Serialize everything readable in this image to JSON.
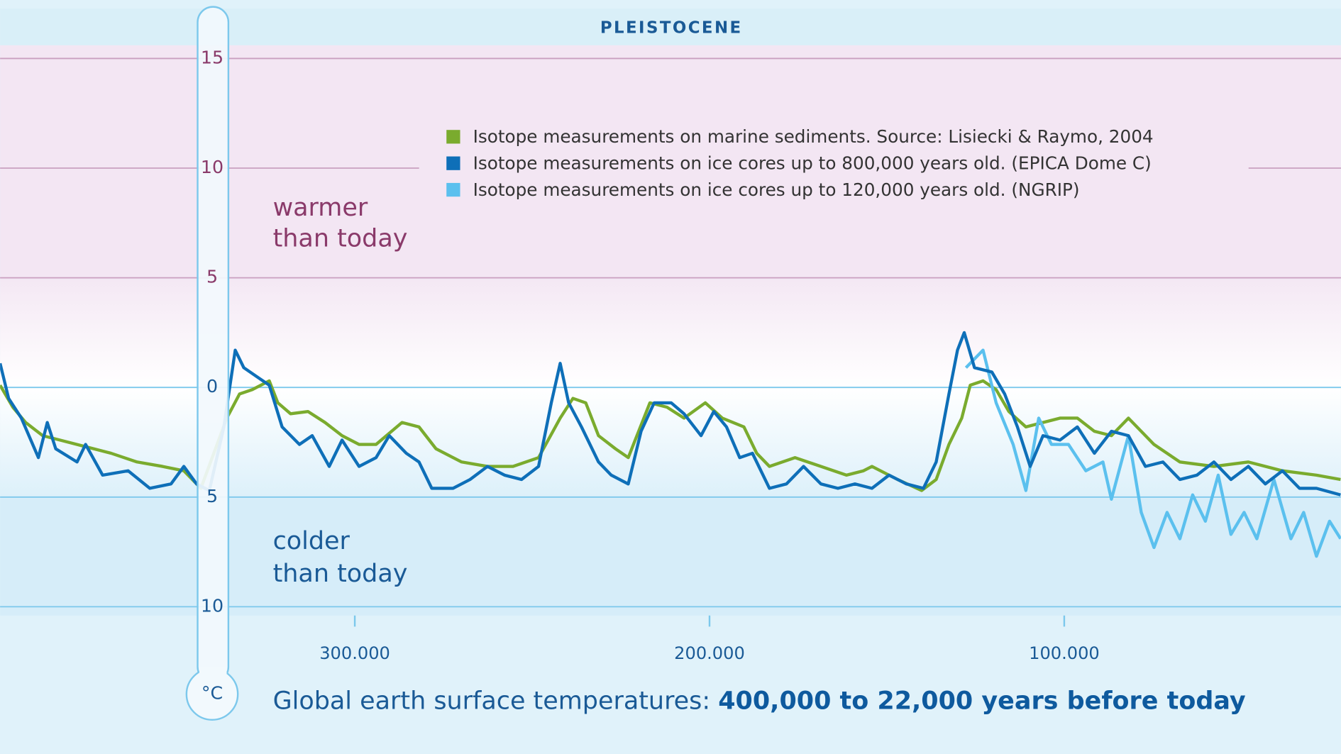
{
  "chart_data": {
    "type": "line",
    "band_label": "PLEISTOCENE",
    "title": {
      "text": "Global earth surface temperatures:",
      "emphasis": "400,000 to 22,000 years before today"
    },
    "y_unit": "°C",
    "annotations": [
      {
        "lines": [
          "warmer",
          "than today"
        ]
      },
      {
        "lines": [
          "colder",
          "than today"
        ]
      }
    ],
    "xlim": [
      400000,
      22000
    ],
    "xticks": [
      {
        "value": 300000,
        "label": "300.000"
      },
      {
        "value": 200000,
        "label": "200.000"
      },
      {
        "value": 100000,
        "label": "100.000"
      }
    ],
    "ylim": [
      -10.4,
      15.6
    ],
    "yticks": [
      15,
      10,
      5,
      0,
      {
        "value": -5,
        "label": "5"
      },
      {
        "value": -10,
        "label": "10"
      }
    ],
    "grid": true,
    "series": [
      {
        "name": "Isotope measurements on marine sediments. Source: Lisiecki & Raymo, 2004",
        "color": "#7aab2e",
        "x": [
          400000,
          396400,
          392800,
          388000,
          383100,
          375900,
          368700,
          361400,
          354200,
          348200,
          343400,
          336100,
          332500,
          328900,
          324100,
          321700,
          318100,
          313200,
          308400,
          303600,
          298800,
          294000,
          286700,
          281900,
          277100,
          269900,
          262600,
          255400,
          248200,
          242100,
          238500,
          234900,
          231300,
          226500,
          222900,
          216800,
          212000,
          207200,
          201200,
          196400,
          190300,
          186700,
          183100,
          175900,
          168600,
          161400,
          156600,
          154200,
          147000,
          140200,
          136100,
          132500,
          128900,
          126500,
          122900,
          119200,
          115600,
          110800,
          106000,
          101200,
          96300,
          91500,
          86700,
          81900,
          74700,
          67400,
          57800,
          48100,
          38500,
          28900,
          22100
        ],
        "values": [
          0.1,
          -0.9,
          -1.6,
          -2.2,
          -2.4,
          -2.7,
          -3.0,
          -3.4,
          -3.6,
          -3.8,
          -4.6,
          -1.4,
          -0.3,
          -0.1,
          0.3,
          -0.7,
          -1.2,
          -1.1,
          -1.6,
          -2.2,
          -2.6,
          -2.6,
          -1.6,
          -1.8,
          -2.8,
          -3.4,
          -3.6,
          -3.6,
          -3.2,
          -1.4,
          -0.5,
          -0.7,
          -2.2,
          -2.8,
          -3.2,
          -0.7,
          -0.9,
          -1.4,
          -0.7,
          -1.4,
          -1.8,
          -3.0,
          -3.6,
          -3.2,
          -3.6,
          -4.0,
          -3.8,
          -3.6,
          -4.2,
          -4.7,
          -4.2,
          -2.6,
          -1.4,
          0.1,
          0.3,
          -0.1,
          -1.1,
          -1.8,
          -1.6,
          -1.4,
          -1.4,
          -2.0,
          -2.2,
          -1.4,
          -2.6,
          -3.4,
          -3.6,
          -3.4,
          -3.8,
          -4.0,
          -4.2
        ]
      },
      {
        "name": "Isotope measurements on ice cores up to 800,000 years old. (EPICA Dome C)",
        "color": "#0e6fb8",
        "x": [
          400000,
          397600,
          394000,
          389200,
          386700,
          384300,
          378300,
          375900,
          371100,
          363900,
          357800,
          351800,
          348200,
          344600,
          341000,
          336900,
          333700,
          331300,
          327700,
          324100,
          320500,
          315600,
          312000,
          307200,
          303600,
          298800,
          294000,
          290300,
          285500,
          281900,
          278300,
          272300,
          267500,
          262600,
          257800,
          253000,
          248200,
          244600,
          242100,
          239700,
          236100,
          231300,
          227700,
          222900,
          219300,
          215600,
          210800,
          207200,
          202400,
          198800,
          195200,
          191500,
          187900,
          183100,
          178300,
          173500,
          168600,
          163800,
          159000,
          154200,
          149400,
          144500,
          139700,
          136100,
          132500,
          130100,
          128200,
          125300,
          120400,
          116800,
          113200,
          109600,
          106000,
          101200,
          96300,
          91500,
          86700,
          81900,
          77100,
          72200,
          67400,
          62600,
          57800,
          53000,
          48100,
          43300,
          38500,
          33700,
          28900,
          22100
        ],
        "values": [
          1.1,
          -0.5,
          -1.4,
          -3.2,
          -1.6,
          -2.8,
          -3.4,
          -2.6,
          -4.0,
          -3.8,
          -4.6,
          -4.4,
          -3.6,
          -4.4,
          -4.7,
          -1.8,
          1.7,
          0.9,
          0.5,
          0.1,
          -1.8,
          -2.6,
          -2.2,
          -3.6,
          -2.4,
          -3.6,
          -3.2,
          -2.2,
          -3.0,
          -3.4,
          -4.6,
          -4.6,
          -4.2,
          -3.6,
          -4.0,
          -4.2,
          -3.6,
          -0.7,
          1.1,
          -0.7,
          -1.8,
          -3.4,
          -4.0,
          -4.4,
          -2.0,
          -0.7,
          -0.7,
          -1.2,
          -2.2,
          -1.1,
          -1.8,
          -3.2,
          -3.0,
          -4.6,
          -4.4,
          -3.6,
          -4.4,
          -4.6,
          -4.4,
          -4.6,
          -4.0,
          -4.4,
          -4.6,
          -3.4,
          -0.3,
          1.7,
          2.5,
          0.9,
          0.7,
          -0.3,
          -1.8,
          -3.6,
          -2.2,
          -2.4,
          -1.8,
          -3.0,
          -2.0,
          -2.2,
          -3.6,
          -3.4,
          -4.2,
          -4.0,
          -3.4,
          -4.2,
          -3.6,
          -4.4,
          -3.8,
          -4.6,
          -4.6,
          -4.9
        ]
      },
      {
        "name": "Isotope measurements on ice cores up to 120,000 years old. (NGRIP)",
        "color": "#5bc0ee",
        "x": [
          127700,
          122900,
          119200,
          114400,
          110800,
          107200,
          103600,
          98800,
          93900,
          89100,
          86700,
          81900,
          78300,
          74700,
          71000,
          67400,
          63800,
          60200,
          56600,
          53000,
          49300,
          45700,
          40900,
          36100,
          32500,
          28900,
          25200,
          22100
        ],
        "values": [
          0.9,
          1.7,
          -0.7,
          -2.6,
          -4.7,
          -1.4,
          -2.6,
          -2.6,
          -3.8,
          -3.4,
          -5.1,
          -2.2,
          -5.7,
          -7.3,
          -5.7,
          -6.9,
          -4.9,
          -6.1,
          -4.0,
          -6.7,
          -5.7,
          -6.9,
          -4.2,
          -6.9,
          -5.7,
          -7.7,
          -6.1,
          -6.9
        ]
      }
    ]
  }
}
